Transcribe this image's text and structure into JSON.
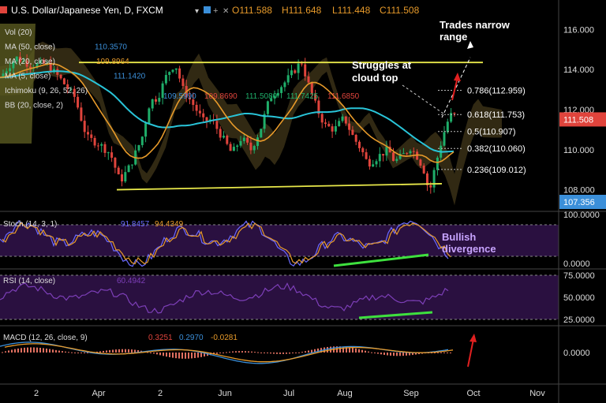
{
  "header": {
    "symbol": "U.S. Dollar/Japanese Yen, D, FXCM",
    "open": "O111.588",
    "high": "H111.648",
    "low": "L111.448",
    "close": "C111.508"
  },
  "legend": [
    {
      "label": "Vol (20)",
      "value": ""
    },
    {
      "label": "MA (50, close)",
      "value": "110.3570",
      "color": "#3b8fd9"
    },
    {
      "label": "MA (20, close)",
      "value": "109.8964",
      "color": "#e79a2a"
    },
    {
      "label": "MA (5, close)",
      "value": "111.1420",
      "color": "#3b8fd9"
    },
    {
      "label": "Ichimoku (9, 26, 52, 26)",
      "value": "",
      "color": "#ddd"
    },
    {
      "label": "BB (20, close, 2)",
      "value": "",
      "color": "#ddd"
    }
  ],
  "ichimoku_values": [
    "109.5990",
    "109.8690",
    "111.5080",
    "111.7425",
    "111.6850"
  ],
  "annotations": {
    "trades_narrow": [
      "Trades narrow",
      "range"
    ],
    "struggles": [
      "Struggles at",
      "cloud top"
    ],
    "bullish": [
      "Bullish",
      "divergence"
    ]
  },
  "fib_levels": [
    {
      "label": "0.786(112.959)",
      "value": 112.959
    },
    {
      "label": "0.618(111.753)",
      "value": 111.753
    },
    {
      "label": "0.5(110.907)",
      "value": 110.907
    },
    {
      "label": "0.382(110.060)",
      "value": 110.06
    },
    {
      "label": "0.236(109.012)",
      "value": 109.012
    }
  ],
  "price_axis": {
    "ticks": [
      "116.000",
      "114.000",
      "112.000",
      "110.000",
      "108.000"
    ],
    "tick_values": [
      116,
      114,
      112,
      110,
      108
    ],
    "current_price": "111.508",
    "low_marker": "107.356"
  },
  "stoch": {
    "label": "Stoch (14, 3, 1)",
    "k": "91.8457",
    "d": "94.4349",
    "ticks": [
      "100.0000",
      "0.0000"
    ]
  },
  "rsi": {
    "label": "RSI (14, close)",
    "value": "60.4942",
    "ticks": [
      "75.0000",
      "50.0000",
      "25.0000"
    ]
  },
  "macd": {
    "label": "MACD (12, 26, close, 9)",
    "v1": "0.3251",
    "v2": "0.2970",
    "v3": "-0.0281",
    "ticks": [
      "0.0000"
    ]
  },
  "x_axis": [
    "2",
    "Apr",
    "2",
    "Jun",
    "Jul",
    "Aug",
    "Sep",
    "Oct",
    "Nov"
  ],
  "colors": {
    "up": "#1fae6a",
    "down": "#e0443c",
    "ma50": "#29c4d8",
    "ma20": "#e79a2a",
    "range_line": "#e8e84a",
    "cloud": "#5a4a22",
    "osc_bg": "#2a1040",
    "stoch_k": "#6a6aff",
    "stoch_d": "#e79a2a",
    "rsi": "#7d3fb8",
    "divergence": "#3ee03e",
    "price_tag": "#e0443c",
    "low_tag": "#3b8fd9"
  },
  "chart_data": {
    "type": "candlestick",
    "price_range": [
      107.0,
      116.6
    ],
    "resistance": [
      114.35,
      114.35
    ],
    "support": [
      108.0,
      108.3
    ]
  }
}
